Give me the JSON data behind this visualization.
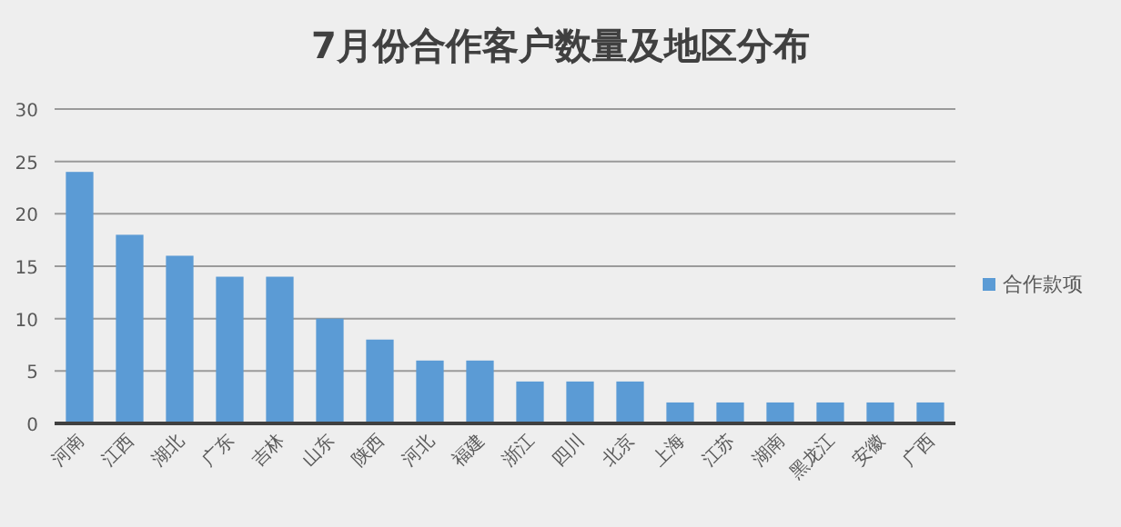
{
  "chart_data": {
    "type": "bar",
    "title": "7月份合作客户数量及地区分布",
    "categories": [
      "河南",
      "江西",
      "湖北",
      "广东",
      "吉林",
      "山东",
      "陕西",
      "河北",
      "福建",
      "浙江",
      "四川",
      "北京",
      "上海",
      "江苏",
      "湖南",
      "黑龙江",
      "安徽",
      "广西"
    ],
    "series": [
      {
        "name": "合作款项",
        "color": "#5b9bd5",
        "values": [
          24,
          18,
          16,
          14,
          14,
          10,
          8,
          6,
          6,
          4,
          4,
          4,
          2,
          2,
          2,
          2,
          2,
          2
        ]
      }
    ],
    "ylim": [
      0,
      30
    ],
    "yticks": [
      0,
      5,
      10,
      15,
      20,
      25,
      30
    ],
    "grid": "y",
    "legend": "right"
  }
}
